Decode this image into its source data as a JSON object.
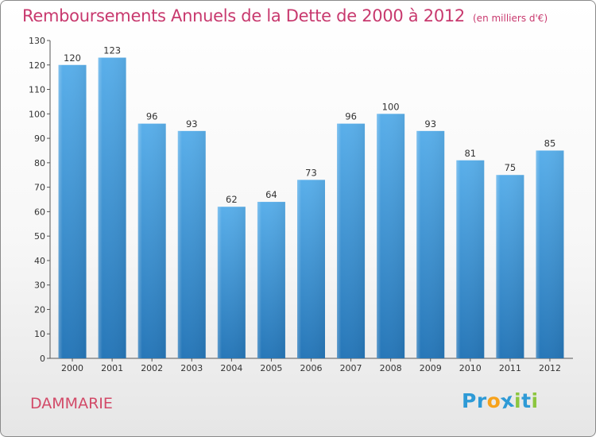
{
  "title": "Remboursements Annuels de la Dette de 2000 à 2012",
  "unit": "(en milliers d'€)",
  "commune": "DAMMARIE",
  "logo": {
    "letters": [
      "P",
      "r",
      "o",
      "x",
      "i",
      "t",
      "i"
    ],
    "colors": [
      "#2e9ad6",
      "#2e9ad6",
      "#f7a21b",
      "#2e9ad6",
      "#8cc63f",
      "#2e9ad6",
      "#8cc63f"
    ]
  },
  "colors": {
    "bar_top": "#5aafea",
    "bar_bottom": "#2777b8",
    "title": "#c8396e",
    "commune": "#d24a68"
  },
  "chart_data": {
    "type": "bar",
    "title": "Remboursements Annuels de la Dette de 2000 à 2012",
    "xlabel": "",
    "ylabel": "",
    "ylim": [
      0,
      130
    ],
    "yticks": [
      0,
      10,
      20,
      30,
      40,
      50,
      60,
      70,
      80,
      90,
      100,
      110,
      120,
      130
    ],
    "grid": false,
    "categories": [
      "2000",
      "2001",
      "2002",
      "2003",
      "2004",
      "2005",
      "2006",
      "2007",
      "2008",
      "2009",
      "2010",
      "2011",
      "2012"
    ],
    "values": [
      120,
      123,
      96,
      93,
      62,
      64,
      73,
      96,
      100,
      93,
      81,
      75,
      85
    ],
    "value_labels": [
      "120",
      "123",
      "96",
      "93",
      "62",
      "64",
      "73",
      "96",
      "100",
      "93",
      "81",
      "75",
      "85"
    ]
  }
}
